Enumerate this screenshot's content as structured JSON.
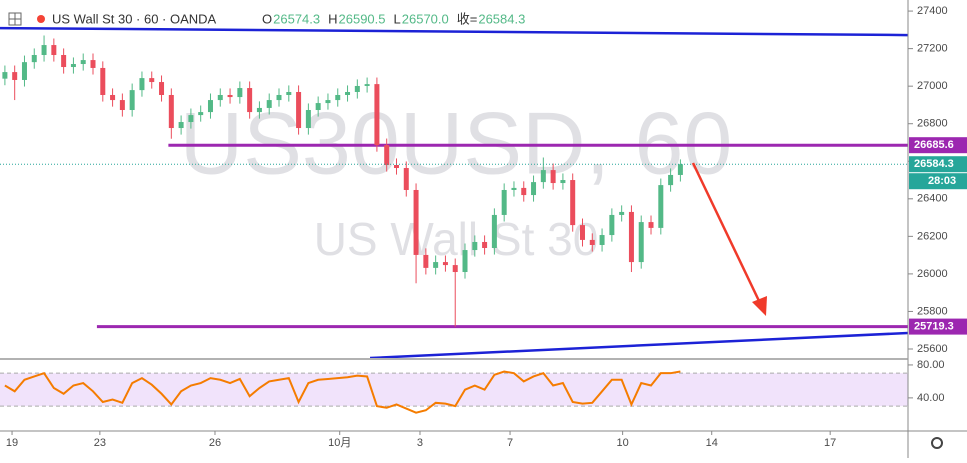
{
  "chart_data": [
    {
      "type": "candlestick",
      "title": "US Wall St 30 · 60 · OANDA",
      "legend_values": [
        {
          "key": "O",
          "value": "26574.3"
        },
        {
          "key": "H",
          "value": "26590.5"
        },
        {
          "key": "L",
          "value": "26570.0"
        },
        {
          "key": "收=",
          "value": "26584.3"
        }
      ],
      "watermark": [
        "US30USD, 60",
        "US Wall St 30"
      ],
      "countdown": "28:03",
      "up_color": "#53b987",
      "down_color": "#eb4d5c",
      "xlim": [
        -0.5,
        92.25
      ],
      "xticks": [
        {
          "value": 0.73,
          "label": "19"
        },
        {
          "value": 9.7,
          "label": "23"
        },
        {
          "value": 21.46,
          "label": "26"
        },
        {
          "value": 34.2,
          "label": "10月"
        },
        {
          "value": 42.4,
          "label": "3"
        },
        {
          "value": 51.6,
          "label": "7"
        },
        {
          "value": 63.1,
          "label": "10"
        },
        {
          "value": 72.2,
          "label": "14"
        },
        {
          "value": 84.3,
          "label": "17"
        }
      ],
      "ylim": [
        25552,
        27459
      ],
      "yticks": [
        25600,
        25800,
        26000,
        26200,
        26400,
        26600,
        26800,
        27000,
        27200,
        27400
      ],
      "grid": false,
      "open": [
        27040,
        27075,
        27033,
        27128,
        27166,
        27219,
        27166,
        27102,
        27118,
        27139,
        27097,
        26953,
        26926,
        26873,
        26979,
        27043,
        27022,
        26953,
        26777,
        26809,
        26846,
        26862,
        26926,
        26953,
        26942,
        26990,
        26862,
        26884,
        26926,
        26953,
        26969,
        26777,
        26873,
        26910,
        26926,
        26953,
        26969,
        27001,
        27011,
        26686,
        26580,
        26564,
        26447,
        26101,
        26032,
        26063,
        26047,
        26010,
        26127,
        26170,
        26138,
        26314,
        26447,
        26458,
        26420,
        26489,
        26553,
        26484,
        26500,
        26260,
        26181,
        26154,
        26207,
        26314,
        26330,
        26063,
        26276,
        26245,
        26473,
        26527
      ],
      "high": [
        27110,
        27110,
        27163,
        27201,
        27270,
        27254,
        27201,
        27153,
        27174,
        27174,
        27132,
        26988,
        26961,
        27014,
        27078,
        27078,
        27057,
        26988,
        26844,
        26881,
        26897,
        26961,
        26988,
        26988,
        27025,
        27025,
        26919,
        26961,
        26988,
        27004,
        27004,
        26908,
        26945,
        26961,
        26988,
        27004,
        27036,
        27046,
        27046,
        26721,
        26615,
        26599,
        26482,
        26136,
        26098,
        26098,
        26082,
        26162,
        26205,
        26205,
        26349,
        26482,
        26493,
        26493,
        26524,
        26620,
        26588,
        26535,
        26535,
        26295,
        26216,
        26242,
        26349,
        26365,
        26365,
        26311,
        26311,
        26508,
        26562,
        26610
      ],
      "low": [
        27005,
        26926,
        26998,
        27093,
        27131,
        27131,
        27067,
        27067,
        27083,
        27062,
        26918,
        26891,
        26838,
        26838,
        26944,
        26987,
        26918,
        26720,
        26742,
        26774,
        26811,
        26827,
        26891,
        26907,
        26907,
        26827,
        26827,
        26849,
        26891,
        26918,
        26742,
        26742,
        26838,
        26875,
        26891,
        26918,
        26934,
        26966,
        26651,
        26545,
        26529,
        26412,
        25950,
        25997,
        25997,
        26012,
        25719,
        25975,
        26092,
        26103,
        26103,
        26279,
        26412,
        26385,
        26385,
        26454,
        26449,
        26449,
        26225,
        26146,
        26119,
        26119,
        26172,
        26279,
        26010,
        26028,
        26210,
        26210,
        26438,
        26492
      ],
      "close": [
        27075,
        27033,
        27128,
        27166,
        27219,
        27166,
        27102,
        27118,
        27139,
        27097,
        26953,
        26926,
        26873,
        26979,
        27043,
        27022,
        26953,
        26777,
        26809,
        26846,
        26862,
        26926,
        26953,
        26942,
        26990,
        26862,
        26884,
        26926,
        26953,
        26969,
        26777,
        26873,
        26910,
        26926,
        26953,
        26969,
        27001,
        27011,
        26686,
        26580,
        26564,
        26447,
        26101,
        26032,
        26063,
        26047,
        26010,
        26127,
        26170,
        26138,
        26314,
        26447,
        26458,
        26420,
        26489,
        26553,
        26484,
        26500,
        26260,
        26181,
        26154,
        26207,
        26314,
        26330,
        26063,
        26276,
        26245,
        26473,
        26527,
        26584.3
      ],
      "last_color": "#26a69a",
      "levels": [
        {
          "value": 26685.6,
          "x_start": 16.7,
          "color": "#9c27b0"
        },
        {
          "value": 25719.3,
          "x_start": 9.4,
          "color": "#9c27b0"
        }
      ],
      "trendlines": [
        {
          "x": [
            -0.5,
            92.25
          ],
          "y": [
            27309.5,
            27272.2
          ],
          "color": "#1c22d6"
        },
        {
          "x": [
            37.3,
            92.25
          ],
          "y": [
            25552,
            25685.3
          ],
          "color": "#1c22d6"
        }
      ]
    },
    {
      "type": "line",
      "xlim": [
        -0.5,
        92.25
      ],
      "ylim": [
        1,
        86
      ],
      "yticks": [
        {
          "value": 80,
          "label": "80.00"
        },
        {
          "value": 40,
          "label": "40.00"
        }
      ],
      "bands": [
        30,
        70
      ],
      "band_color": "#f1e3fb",
      "series": [
        {
          "color": "#f57c00",
          "values": [
            55,
            48,
            62,
            66,
            70,
            52,
            45,
            55,
            58,
            48,
            35,
            38,
            34,
            58,
            64,
            56,
            45,
            32,
            48,
            55,
            58,
            64,
            62,
            58,
            63,
            42,
            52,
            60,
            62,
            64,
            35,
            58,
            62,
            63,
            64,
            65,
            67,
            66,
            30,
            28,
            32,
            27,
            22,
            25,
            34,
            33,
            30,
            50,
            55,
            50,
            68,
            72,
            70,
            60,
            66,
            70,
            55,
            58,
            35,
            33,
            34,
            48,
            62,
            62,
            32,
            58,
            55,
            70,
            70,
            72
          ]
        }
      ]
    }
  ]
}
